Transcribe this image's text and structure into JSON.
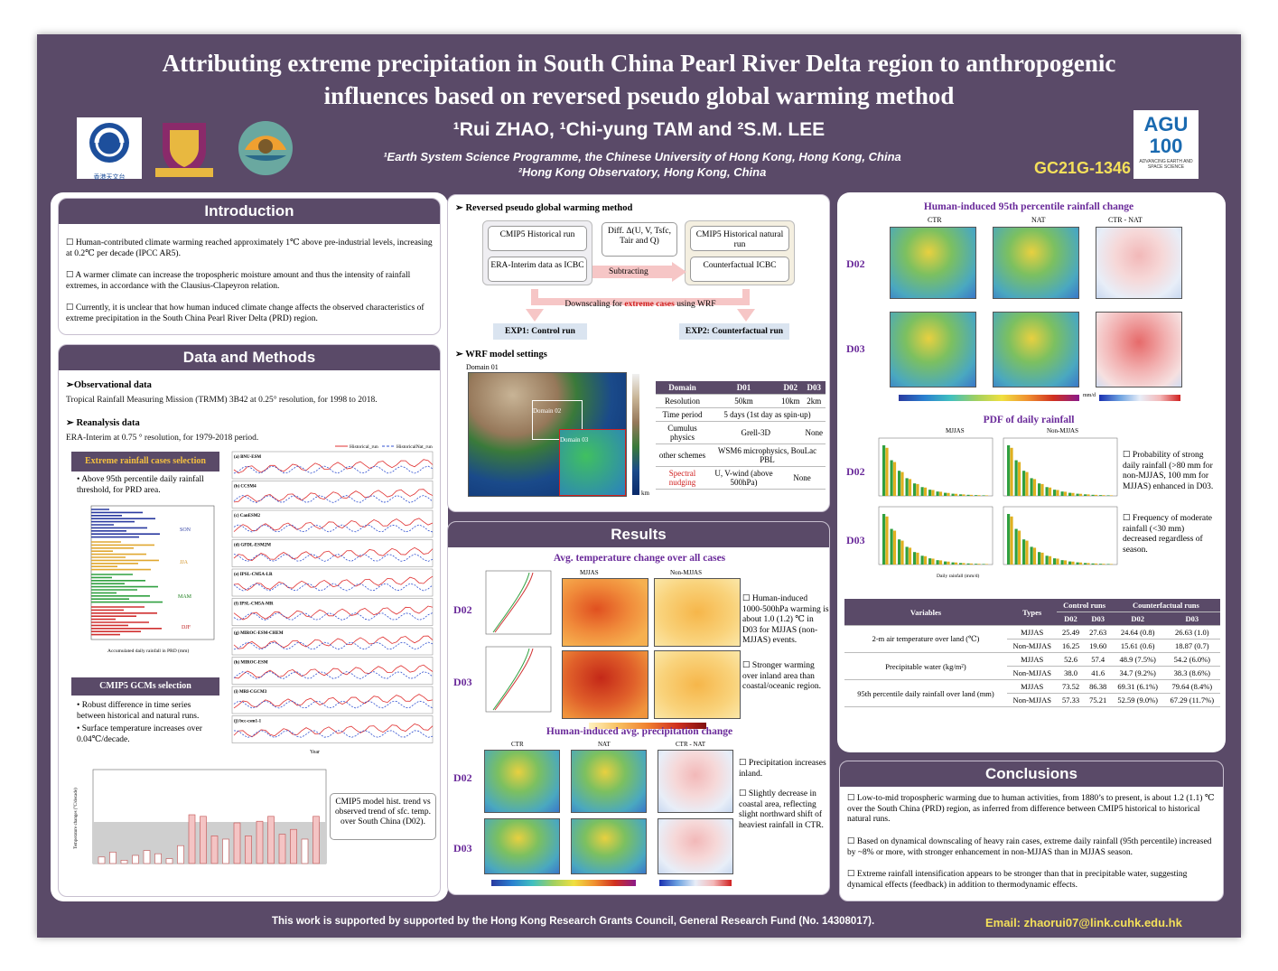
{
  "header": {
    "title_line1": "Attributing extreme precipitation in South China Pearl River Delta region to anthropogenic",
    "title_line2": "influences based on reversed pseudo global warming method",
    "authors": "¹Rui ZHAO, ¹Chi-yung TAM and ²S.M. LEE",
    "affiliation1": "¹Earth System Science Programme, the Chinese University of Hong Kong, Hong Kong, China",
    "affiliation2": "²Hong Kong Observatory, Hong Kong, China",
    "poster_id": "GC21G-1346",
    "hko_logo_text": "香港天文台",
    "agu_logo_text": "AGU 100",
    "agu_logo_sub": "ADVANCING EARTH AND SPACE SCIENCE"
  },
  "intro": {
    "heading": "Introduction",
    "b1": "Human-contributed climate warming reached approximately 1℃ above pre-industrial levels, increasing at 0.2℃ per decade (IPCC AR5).",
    "b2": "A warmer climate can increase the tropospheric moisture amount and thus the intensity of rainfall extremes, in accordance with the Clausius-Clapeyron relation.",
    "b3": "Currently, it is unclear that how human induced climate change affects the observed characteristics of extreme precipitation in the South China Pearl River Delta (PRD) region."
  },
  "methods": {
    "heading": "Data and Methods",
    "obs_head": "Observational data",
    "obs_text": "Tropical Rainfall Measuring Mission (TRMM) 3B42 at 0.25° resolution, for 1998 to 2018.",
    "rea_head": "Reanalysis data",
    "rea_text": "ERA-Interim at 0.75 ° resolution, for 1979-2018 period.",
    "ext_head": "Extreme rainfall cases selection",
    "ext_text": "Above 95th percentile daily rainfall threshold, for PRD area.",
    "seasons": [
      "SON",
      "JJA",
      "MAM",
      "DJF"
    ],
    "ext_xlabel": "Accumulated daily rainfall in PRD (mm)",
    "ext_ylabel": "No. of extreme cases",
    "cmip_head": "CMIP5 GCMs selection",
    "cmip_b1": "Robust difference in time series between historical and natural runs.",
    "cmip_b2": "Surface temperature increases over 0.04℃/decade.",
    "legend_hist": "Historical_run",
    "legend_nat": "HistoricalNat_run",
    "models": [
      "(a) BNU-ESM",
      "(b) CCSM4",
      "(c) CanESM2",
      "(d) GFDL-ESM2M",
      "(e) IPSL-CM5A-LR",
      "(f) IPSL-CM5A-MR",
      "(g) MIROC-ESM-CHEM",
      "(h) MIROC-ESM",
      "(i) MRI-CGCM3",
      "(j) bcc-csm1-1"
    ],
    "ts_xlabel": "Year",
    "callout": "CMIP5 model hist. trend vs observed trend of sfc. temp. over South China (D02).",
    "trend_ylabel": "Temperature changes (°C/decade)"
  },
  "rpgw": {
    "heading": "Reversed pseudo global warming method",
    "box1": "CMIP5 Historical run",
    "box2": "ERA-Interim data as ICBC",
    "diff": "Diff. Δ(U, V, Tsfc, Tair and Q)",
    "box3": "CMIP5 Historical natural run",
    "box4": "Counterfactual ICBC",
    "subtract": "Subtracting",
    "down1": "Downscaling for ",
    "down2": "extreme cases",
    "down3": " using WRF",
    "exp1": "EXP1: Control run",
    "exp2": "EXP2: Counterfactual run",
    "wrf_head": "WRF model settings",
    "domain_title": "Domain 01",
    "d02": "Domain 02",
    "d03": "Domain 03",
    "cb_unit": "km",
    "wrf_table": {
      "cols": [
        "Domain",
        "D01",
        "D02",
        "D03"
      ],
      "rows": [
        [
          "Resolution",
          "50km",
          "10km",
          "2km"
        ],
        [
          "Time period",
          "5 days (1st day as spin-up)"
        ],
        [
          "Cumulus physics",
          "Grell-3D",
          "None"
        ],
        [
          "other schemes",
          "WSM6 microphysics, BouLac PBL"
        ],
        [
          "Spectral nudging",
          "U, V-wind (above 500hPa)",
          "None"
        ]
      ]
    }
  },
  "results": {
    "heading": "Results",
    "temp_title": "Avg. temperature change over all cases",
    "mjjas": "MJJAS",
    "nonmjjas": "Non-MJJAS",
    "d02": "D02",
    "d03": "D03",
    "temp_b1": "Human-induced 1000-500hPa warming is about 1.0 (1.2) ℃ in D03 for MJJAS (non-MJJAS) events.",
    "temp_b2": "Stronger warming over inland area than coastal/oceanic region.",
    "precip_title": "Human-induced avg. precipitation change",
    "ctr": "CTR",
    "nat": "NAT",
    "diff": "CTR - NAT",
    "precip_b1": "Precipitation increases inland.",
    "precip_b2": "Slightly decrease in coastal area, reflecting slight northward shift of heaviest rainfall in CTR.",
    "pct_title": "Human-induced 95th percentile rainfall change",
    "cb_label": "mm/d",
    "pdf_title": "PDF of daily rainfall",
    "pdf_b1": "Probability of strong daily rainfall (>80 mm for non-MJJAS, 100 mm for MJJAS) enhanced in D03.",
    "pdf_b2": "Frequency of moderate rainfall (<30 mm) decreased regardless of season.",
    "pdf_xlabel": "Daily rainfall (mm/d)",
    "pdf_ylabel": "Probability (%)"
  },
  "table": {
    "h_var": "Variables",
    "h_type": "Types",
    "h_ctrl": "Control runs",
    "h_cf": "Counterfactual runs",
    "d02": "D02",
    "d03": "D03",
    "rows": [
      [
        "2-m air temperature over land (℃)",
        "MJJAS",
        "25.49",
        "27.63",
        "24.64 (0.8)",
        "26.63 (1.0)"
      ],
      [
        "",
        "Non-MJJAS",
        "16.25",
        "19.60",
        "15.61 (0.6)",
        "18.87 (0.7)"
      ],
      [
        "Precipitable water (kg/m²)",
        "MJJAS",
        "52.6",
        "57.4",
        "48.9 (7.5%)",
        "54.2 (6.0%)"
      ],
      [
        "",
        "Non-MJJAS",
        "38.0",
        "41.6",
        "34.7 (9.2%)",
        "38.3 (8.6%)"
      ],
      [
        "95th percentile daily rainfall over land (mm)",
        "MJJAS",
        "73.52",
        "86.38",
        "69.31 (6.1%)",
        "79.64 (8.4%)"
      ],
      [
        "",
        "Non-MJJAS",
        "57.33",
        "75.21",
        "52.59 (9.0%)",
        "67.29 (11.7%)"
      ]
    ]
  },
  "conclusions": {
    "heading": "Conclusions",
    "c1": "Low-to-mid tropospheric warming due to human activities, from 1880’s to present, is about 1.2 (1.1) ℃ over the South China (PRD) region, as inferred from difference between CMIP5 historical to historical natural runs.",
    "c2": "Based on dynamical downscaling of heavy rain cases, extreme daily rainfall (95th percentile) increased by ~8% or more, with stronger enhancement in non-MJJAS than in MJJAS season.",
    "c3": "Extreme rainfall intensification appears to be stronger than that in precipitable water, suggesting dynamical effects (feedback) in addition to thermodynamic effects."
  },
  "footer": {
    "support": "This work is supported by supported by the Hong Kong Research Grants Council, General Research Fund (No. 14308017).",
    "email": "Email: zhaorui07@link.cuhk.edu.hk"
  }
}
